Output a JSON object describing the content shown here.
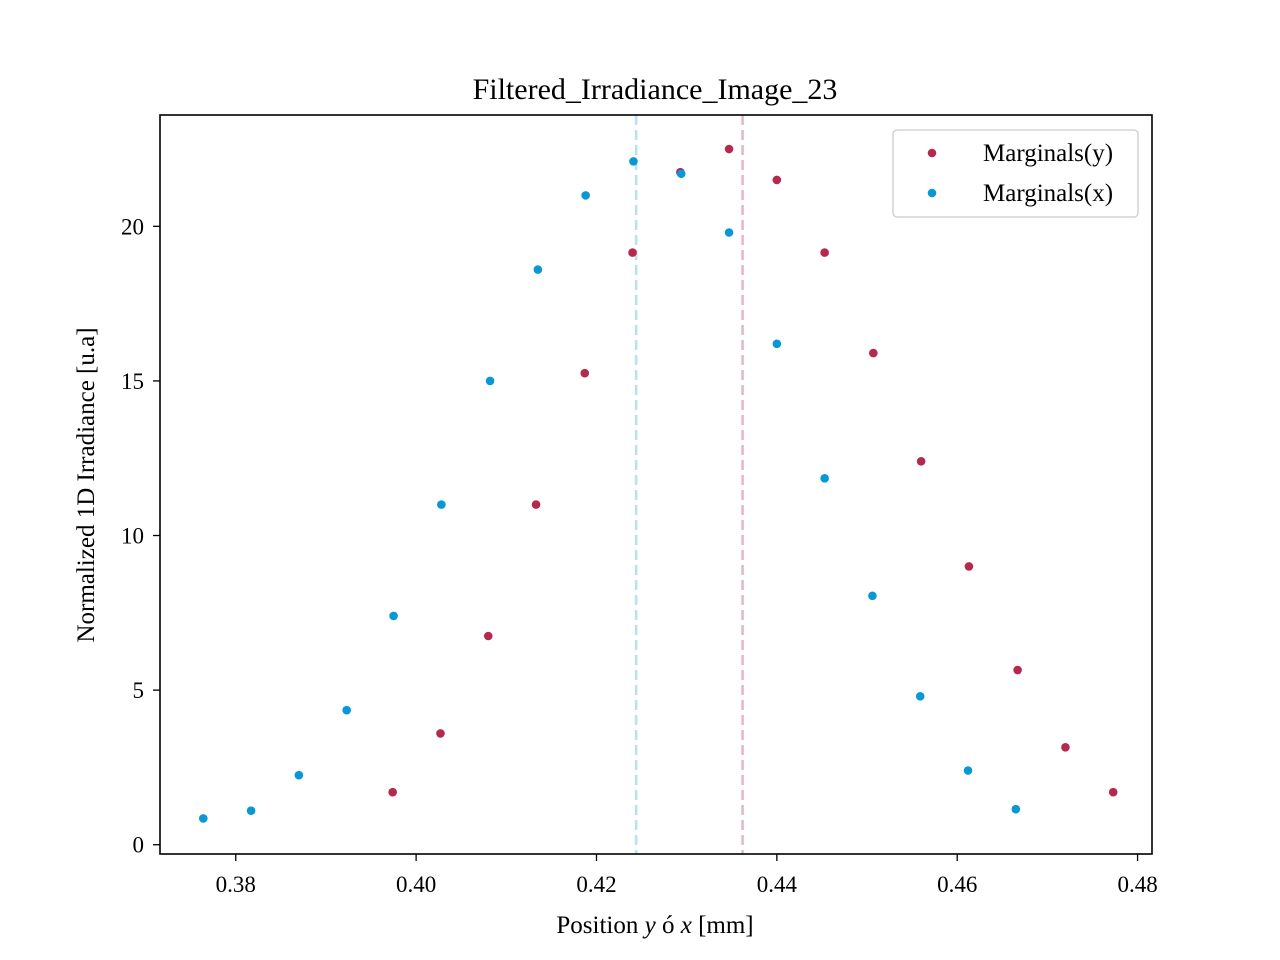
{
  "chart_data": {
    "type": "scatter",
    "title": "Filtered_Irradiance_Image_23",
    "xlabel": {
      "prefix": "Position ",
      "var1": "y",
      "mid": " ó ",
      "var2": "x",
      "suffix": " [mm]"
    },
    "ylabel": "Normalized 1D Irradiance [u.a]",
    "xlim": [
      0.3716,
      0.4816
    ],
    "ylim": [
      -0.3,
      23.6
    ],
    "x_ticks": [
      {
        "value": 0.38,
        "label": "0.38"
      },
      {
        "value": 0.4,
        "label": "0.40"
      },
      {
        "value": 0.42,
        "label": "0.42"
      },
      {
        "value": 0.44,
        "label": "0.44"
      },
      {
        "value": 0.46,
        "label": "0.46"
      },
      {
        "value": 0.48,
        "label": "0.48"
      }
    ],
    "y_ticks": [
      {
        "value": 0,
        "label": "0"
      },
      {
        "value": 5,
        "label": "5"
      },
      {
        "value": 10,
        "label": "10"
      },
      {
        "value": 15,
        "label": "15"
      },
      {
        "value": 20,
        "label": "20"
      }
    ],
    "legend_position": "upper right",
    "grid": false,
    "series": [
      {
        "name": "Marginals(y)",
        "color": "#b5294e",
        "points": [
          [
            0.3974,
            1.7
          ],
          [
            0.4027,
            3.6
          ],
          [
            0.408,
            6.75
          ],
          [
            0.4133,
            11.0
          ],
          [
            0.4187,
            15.25
          ],
          [
            0.424,
            19.15
          ],
          [
            0.4293,
            21.75
          ],
          [
            0.4347,
            22.5
          ],
          [
            0.44,
            21.5
          ],
          [
            0.4453,
            19.15
          ],
          [
            0.4507,
            15.9
          ],
          [
            0.456,
            12.4
          ],
          [
            0.4613,
            9.0
          ],
          [
            0.4667,
            5.65
          ],
          [
            0.472,
            3.15
          ],
          [
            0.4773,
            1.7
          ]
        ]
      },
      {
        "name": "Marginals(x)",
        "color": "#0a97d6",
        "points": [
          [
            0.3764,
            0.85
          ],
          [
            0.3817,
            1.1
          ],
          [
            0.387,
            2.25
          ],
          [
            0.3923,
            4.35
          ],
          [
            0.3975,
            7.4
          ],
          [
            0.4028,
            11.0
          ],
          [
            0.4082,
            15.0
          ],
          [
            0.4135,
            18.6
          ],
          [
            0.4188,
            21.0
          ],
          [
            0.4241,
            22.1
          ],
          [
            0.4294,
            21.7
          ],
          [
            0.4347,
            19.8
          ],
          [
            0.44,
            16.2
          ],
          [
            0.4453,
            11.85
          ],
          [
            0.4506,
            8.05
          ],
          [
            0.4559,
            4.8
          ],
          [
            0.4612,
            2.4
          ],
          [
            0.4665,
            1.15
          ]
        ]
      }
    ],
    "vlines": [
      {
        "x": 0.4244,
        "color": "#b8e2f2",
        "style": "dashed"
      },
      {
        "x": 0.4362,
        "color": "#eab7c5",
        "style": "dashed"
      }
    ]
  }
}
